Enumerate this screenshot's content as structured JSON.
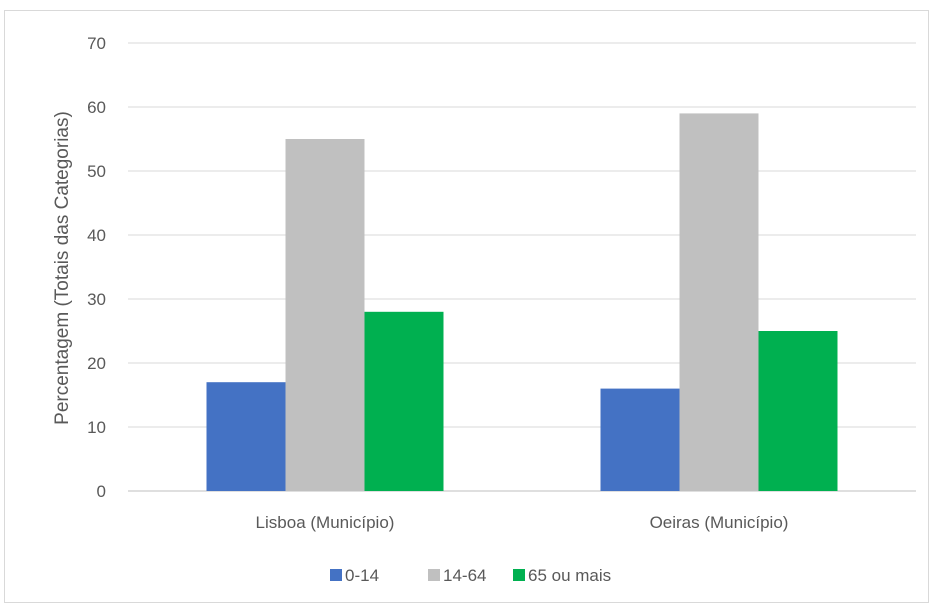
{
  "chart_data": {
    "type": "bar",
    "categories": [
      "Lisboa (Município)",
      "Oeiras (Município)"
    ],
    "series": [
      {
        "name": "0-14",
        "color": "#4472c4",
        "values": [
          17,
          16
        ]
      },
      {
        "name": "14-64",
        "color": "#c0c0c0",
        "values": [
          55,
          59
        ]
      },
      {
        "name": "65 ou mais",
        "color": "#00b050",
        "values": [
          28,
          25
        ]
      }
    ],
    "title": "",
    "xlabel": "",
    "ylabel": "Percentagem (Totais das Categorias)",
    "ylim": [
      0,
      70
    ],
    "yticks": [
      0,
      10,
      20,
      30,
      40,
      50,
      60,
      70
    ],
    "grid": true,
    "legend_position": "bottom"
  }
}
